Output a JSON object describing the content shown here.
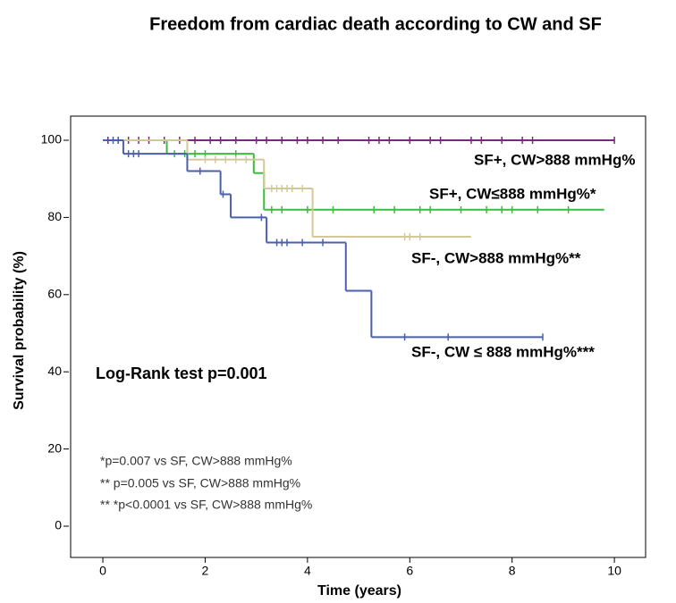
{
  "chart_data": {
    "type": "kaplan-meier",
    "title": "Freedom from cardiac death according to CW and SF",
    "x_label": "Time (years)",
    "y_label": "Survival probability (%)",
    "xlim": [
      -0.63,
      10.61
    ],
    "ylim": [
      -8.1,
      106.25
    ],
    "xticks": [
      0,
      2,
      4,
      6,
      8,
      10
    ],
    "yticks": [
      0,
      20,
      40,
      60,
      80,
      100
    ],
    "series": [
      {
        "name": "SF+, CW>888 mmHg%",
        "color": "#7b2a7b",
        "x": [
          0,
          10
        ],
        "values": [
          100,
          100
        ],
        "censored_x": [
          0.1,
          0.3,
          0.5,
          0.7,
          0.9,
          1.2,
          1.5,
          1.8,
          2.1,
          2.3,
          2.6,
          3.0,
          3.2,
          3.5,
          3.8,
          4.0,
          4.3,
          4.6,
          5.2,
          5.4,
          5.6,
          6.0,
          6.4,
          6.6,
          7.2,
          7.4,
          7.8,
          8.2,
          8.4,
          10.0
        ],
        "censored_y": [
          100,
          100,
          100,
          100,
          100,
          100,
          100,
          100,
          100,
          100,
          100,
          100,
          100,
          100,
          100,
          100,
          100,
          100,
          100,
          100,
          100,
          100,
          100,
          100,
          100,
          100,
          100,
          100,
          100,
          100
        ]
      },
      {
        "name": "SF+, CW≤888 mmHg%*",
        "color": "#3dbb3d",
        "x": [
          0,
          1.25,
          2.95,
          3.15,
          9.8
        ],
        "values": [
          100,
          96.5,
          91.5,
          82,
          82
        ],
        "censored_x": [
          1.4,
          1.6,
          1.8,
          2.0,
          2.6,
          3.3,
          3.5,
          4.0,
          4.5,
          5.3,
          5.7,
          6.2,
          6.4,
          7.0,
          7.5,
          7.8,
          8.0,
          8.5,
          9.1
        ],
        "censored_y": [
          96.5,
          96.5,
          96.5,
          96.5,
          96.5,
          82,
          82,
          82,
          82,
          82,
          82,
          82,
          82,
          82,
          82,
          82,
          82,
          82,
          82
        ]
      },
      {
        "name": "SF-, CW>888 mmHg%**",
        "color": "#d4c89a",
        "x": [
          0,
          1.65,
          3.15,
          4.1,
          7.2
        ],
        "values": [
          100,
          95,
          87.5,
          75,
          75
        ],
        "censored_x": [
          2.0,
          2.2,
          2.4,
          2.6,
          2.8,
          3.3,
          3.4,
          3.5,
          3.6,
          3.7,
          3.9,
          5.9,
          6.0,
          6.2
        ],
        "censored_y": [
          95,
          95,
          95,
          95,
          95,
          87.5,
          87.5,
          87.5,
          87.5,
          87.5,
          87.5,
          75,
          75,
          75
        ]
      },
      {
        "name": "SF-, CW ≤ 888 mmHg%***",
        "color": "#4a5fb0",
        "x": [
          0,
          0.4,
          1.65,
          2.3,
          2.5,
          3.2,
          4.75,
          5.25,
          8.6
        ],
        "values": [
          100,
          96.5,
          92,
          86,
          80,
          73.5,
          61,
          49,
          49
        ],
        "censored_x": [
          0.2,
          0.3,
          0.5,
          0.6,
          0.7,
          1.9,
          2.35,
          3.1,
          3.4,
          3.5,
          3.6,
          3.9,
          4.3,
          5.9,
          6.75,
          8.6
        ],
        "censored_y": [
          100,
          100,
          96.5,
          96.5,
          96.5,
          92,
          86,
          80,
          73.5,
          73.5,
          73.5,
          73.5,
          73.5,
          49,
          49,
          49
        ]
      }
    ],
    "annotations": [
      "Log-Rank test p=0.001"
    ],
    "notes": [
      "*p=0.007 vs SF, CW>888 mmHg%",
      "** p=0.005  vs SF, CW>888 mmHg%",
      "** *p<0.0001 vs SF, CW>888 mmHg%"
    ]
  }
}
